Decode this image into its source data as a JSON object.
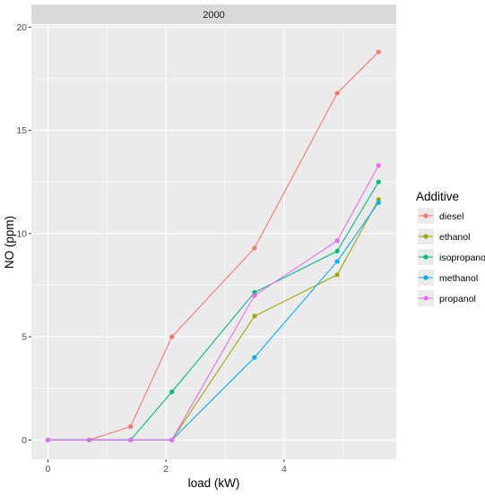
{
  "chart_data": {
    "type": "line",
    "facet_label": "2000",
    "xlabel": "load (kW)",
    "ylabel": "NO (ppm)",
    "xlim": [
      -0.28,
      5.9
    ],
    "ylim": [
      -0.94,
      20.1
    ],
    "x_ticks": [
      0,
      2,
      4
    ],
    "y_ticks": [
      0,
      5,
      10,
      15,
      20
    ],
    "grid": true,
    "legend_title": "Additive",
    "legend_position": "right",
    "series": [
      {
        "name": "diesel",
        "color": "#F8766D",
        "x": [
          0,
          0.7,
          1.4,
          2.1,
          3.5,
          4.9,
          5.6
        ],
        "y": [
          0,
          0,
          0.65,
          5.0,
          9.3,
          16.8,
          18.8
        ]
      },
      {
        "name": "ethanol",
        "color": "#A3A500",
        "x": [
          0,
          0.7,
          1.4,
          2.1,
          3.5,
          4.9,
          5.6
        ],
        "y": [
          0,
          0,
          0,
          0,
          6.0,
          8.0,
          11.65
        ]
      },
      {
        "name": "isopropanol",
        "color": "#00BF7D",
        "x": [
          0,
          0.7,
          1.4,
          2.1,
          3.5,
          4.9,
          5.6
        ],
        "y": [
          0,
          0,
          0,
          2.33,
          7.15,
          9.15,
          12.5
        ]
      },
      {
        "name": "methanol",
        "color": "#00B0F6",
        "x": [
          0,
          0.7,
          1.4,
          2.1,
          3.5,
          4.9,
          5.6
        ],
        "y": [
          0,
          0,
          0,
          0,
          4.0,
          8.65,
          11.5
        ]
      },
      {
        "name": "propanol",
        "color": "#E76BF3",
        "x": [
          0,
          0.7,
          1.4,
          2.1,
          3.5,
          4.9,
          5.6
        ],
        "y": [
          0,
          0,
          0,
          0,
          7.0,
          9.65,
          13.3
        ]
      }
    ]
  }
}
